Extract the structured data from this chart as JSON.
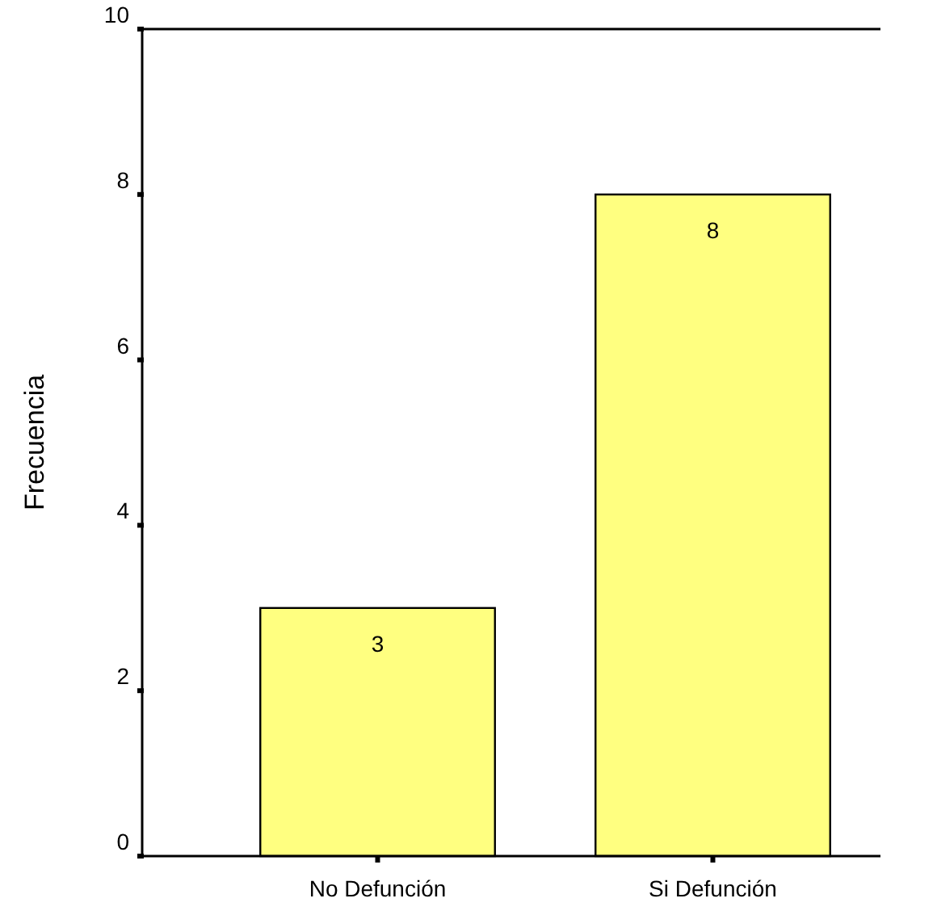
{
  "chart_data": {
    "type": "bar",
    "ylabel": "Frecuencia",
    "categories": [
      "No Defunción",
      "Si Defunción"
    ],
    "values": [
      3,
      8
    ],
    "color": "#ffff80",
    "ylim": [
      0,
      10
    ],
    "yticks": [
      0,
      2,
      4,
      6,
      8,
      10
    ],
    "data_labels": true
  }
}
